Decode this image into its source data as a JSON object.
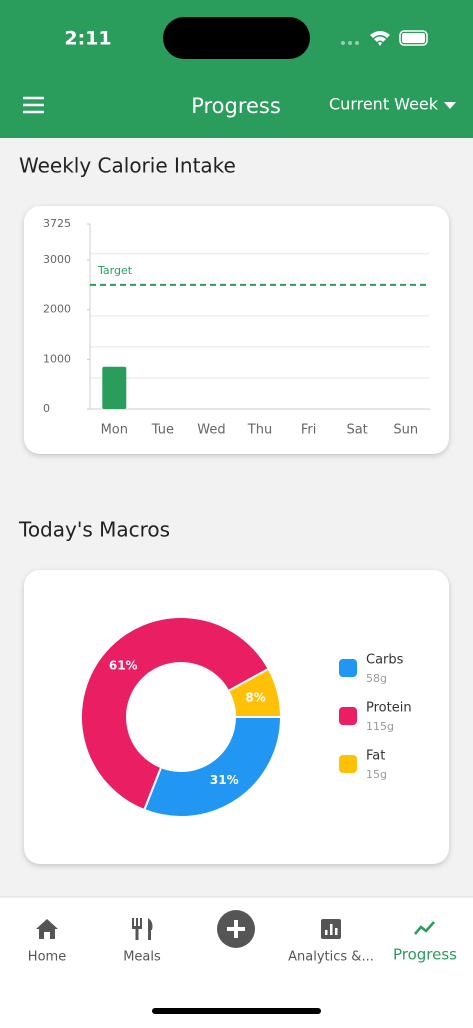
{
  "status_bar": {
    "time": "2:11"
  },
  "header": {
    "title": "Progress",
    "period": "Current Week"
  },
  "calorie_section": {
    "title": "Weekly Calorie Intake",
    "chart": {
      "type": "bar",
      "categories": [
        "Mon",
        "Tue",
        "Wed",
        "Thu",
        "Fri",
        "Sat",
        "Sun"
      ],
      "values": [
        850,
        0,
        0,
        0,
        0,
        0,
        0
      ],
      "color": "#2a9d5c",
      "ylim": [
        0,
        3725
      ],
      "yticks": [
        0,
        1000,
        2000,
        3000,
        3725
      ],
      "grid_lines": [
        625,
        1250,
        1875,
        3125
      ],
      "target": {
        "label": "Target",
        "value": 2500,
        "color": "#2a9d5c"
      }
    }
  },
  "macros_section": {
    "title": "Today's Macros",
    "chart": {
      "type": "pie",
      "categories": [
        "Carbs",
        "Protein",
        "Fat"
      ],
      "values": [
        31,
        61,
        8
      ],
      "value_labels": [
        "31%",
        "61%",
        "8%"
      ],
      "colors": [
        "#2196f3",
        "#e91e63",
        "#ffc107"
      ],
      "amounts": [
        "58g",
        "115g",
        "15g"
      ]
    }
  },
  "tab_bar": {
    "tabs": [
      "Home",
      "Meals",
      "Analytics &...",
      "Progress"
    ],
    "active_tab": 3,
    "active_color": "#2a9d5c"
  }
}
